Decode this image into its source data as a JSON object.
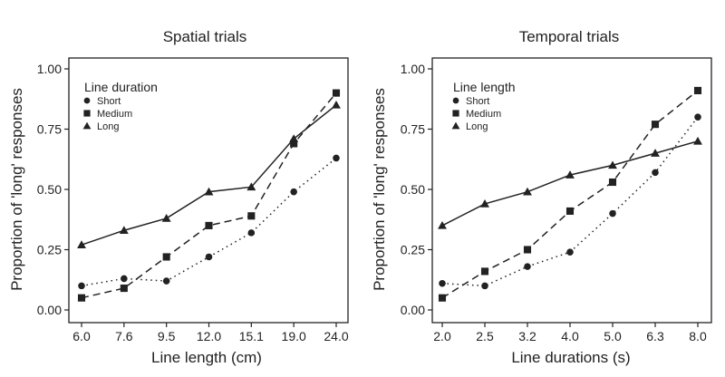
{
  "chart_data": [
    {
      "type": "line",
      "title": "Spatial trials",
      "xlabel": "Line length (cm)",
      "ylabel": "Proportion of 'long' responses",
      "categories": [
        "6.0",
        "7.6",
        "9.5",
        "12.0",
        "15.1",
        "19.0",
        "24.0"
      ],
      "ylim": [
        0,
        1
      ],
      "yticks": [
        "0.00",
        "0.25",
        "0.50",
        "0.75",
        "1.00"
      ],
      "ytick_values": [
        0,
        0.25,
        0.5,
        0.75,
        1.0
      ],
      "grid": false,
      "legend": {
        "title": "Line duration",
        "placement": "top-left"
      },
      "series": [
        {
          "name": "Short",
          "marker": "circle",
          "dash": "dotted",
          "values": [
            0.1,
            0.13,
            0.12,
            0.22,
            0.32,
            0.49,
            0.63
          ]
        },
        {
          "name": "Medium",
          "marker": "square",
          "dash": "dashed",
          "values": [
            0.05,
            0.09,
            0.22,
            0.35,
            0.39,
            0.69,
            0.9
          ]
        },
        {
          "name": "Long",
          "marker": "triangle",
          "dash": "solid",
          "values": [
            0.27,
            0.33,
            0.38,
            0.49,
            0.51,
            0.71,
            0.85
          ]
        }
      ]
    },
    {
      "type": "line",
      "title": "Temporal trials",
      "xlabel": "Line durations (s)",
      "ylabel": "Proportion of 'long' responses",
      "categories": [
        "2.0",
        "2.5",
        "3.2",
        "4.0",
        "5.0",
        "6.3",
        "8.0"
      ],
      "ylim": [
        0,
        1
      ],
      "yticks": [
        "0.00",
        "0.25",
        "0.50",
        "0.75",
        "1.00"
      ],
      "ytick_values": [
        0,
        0.25,
        0.5,
        0.75,
        1.0
      ],
      "grid": false,
      "legend": {
        "title": "Line length",
        "placement": "top-left"
      },
      "series": [
        {
          "name": "Short",
          "marker": "circle",
          "dash": "dotted",
          "values": [
            0.11,
            0.1,
            0.18,
            0.24,
            0.4,
            0.57,
            0.8
          ]
        },
        {
          "name": "Medium",
          "marker": "square",
          "dash": "dashed",
          "values": [
            0.05,
            0.16,
            0.25,
            0.41,
            0.53,
            0.77,
            0.91
          ]
        },
        {
          "name": "Long",
          "marker": "triangle",
          "dash": "solid",
          "values": [
            0.35,
            0.44,
            0.49,
            0.56,
            0.6,
            0.65,
            0.7
          ]
        }
      ]
    }
  ]
}
